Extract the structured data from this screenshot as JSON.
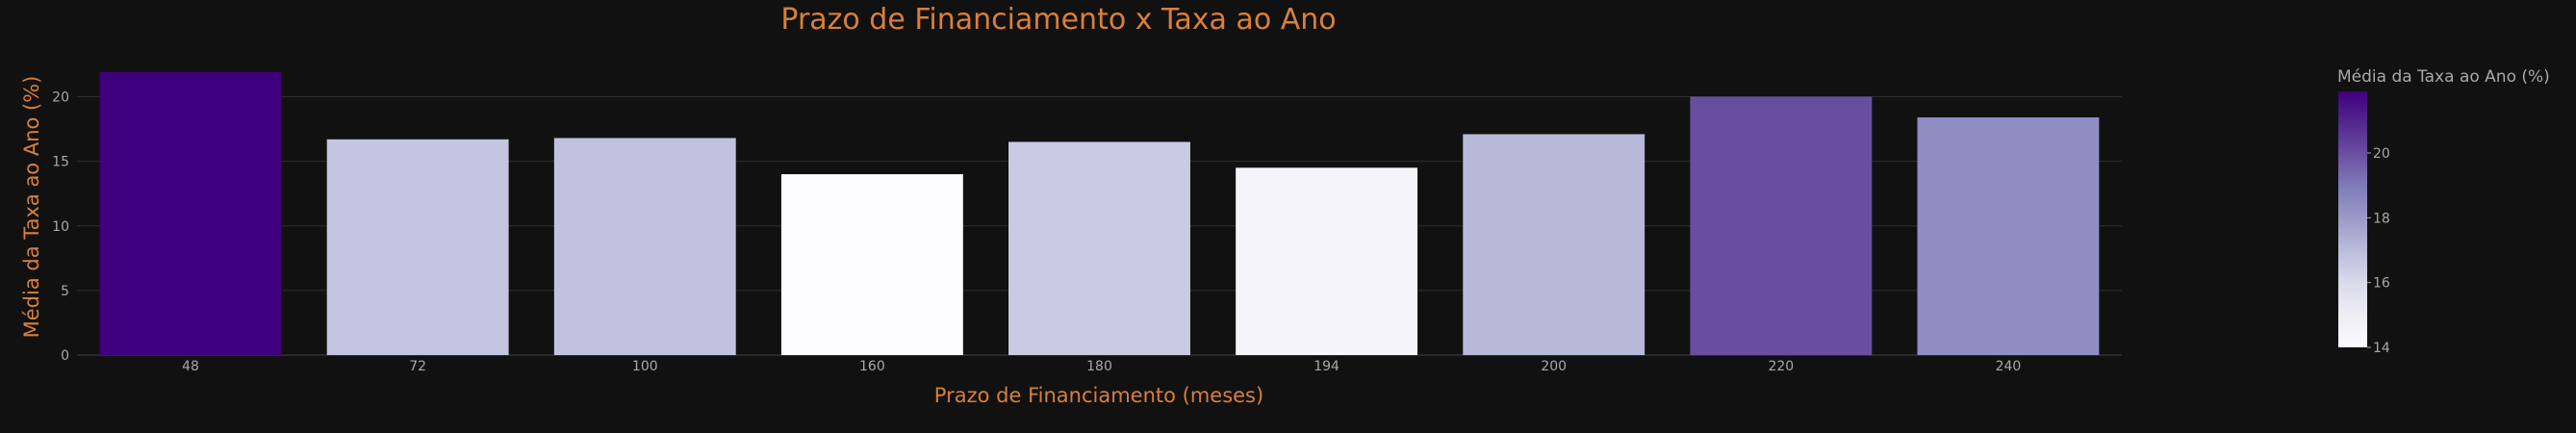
{
  "colors": {
    "background": "#111111",
    "title": "#d97f3a",
    "axis_title": "#d97f3a",
    "tick_text": "#a8a8a8",
    "grid": "#2e2e2e",
    "colorscale": [
      "#fcfbfd",
      "#efedf5",
      "#dadaeb",
      "#bcbddc",
      "#9e9ac8",
      "#807dba",
      "#6a51a3",
      "#54278f",
      "#3f007d"
    ]
  },
  "chart_data": {
    "type": "bar",
    "title": "Prazo de Financiamento x Taxa ao Ano",
    "xlabel": "Prazo de Financiamento (meses)",
    "ylabel": "Média da Taxa ao Ano (%)",
    "categories": [
      "48",
      "72",
      "100",
      "160",
      "180",
      "194",
      "200",
      "220",
      "240"
    ],
    "values": [
      21.9,
      16.7,
      16.8,
      14.0,
      16.5,
      14.5,
      17.1,
      20.0,
      18.4
    ],
    "ylim": [
      0,
      21.9
    ],
    "yticks": [
      0,
      5,
      10,
      15,
      20
    ],
    "grid": true,
    "colorbar": {
      "title": "Média da Taxa ao Ano (%)",
      "range": [
        14.0,
        21.9
      ],
      "ticks": [
        14,
        16,
        18,
        20
      ]
    }
  }
}
